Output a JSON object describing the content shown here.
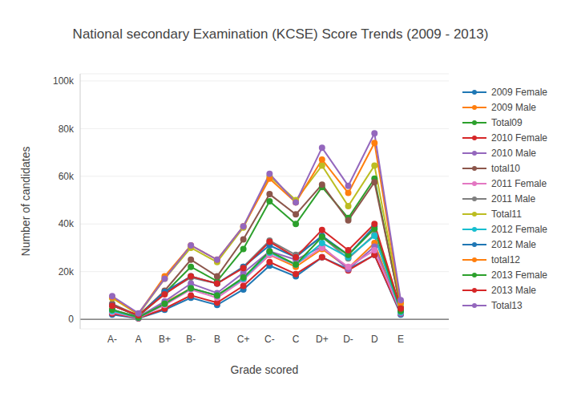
{
  "chart_data": {
    "type": "line",
    "title": "National secondary Examination (KCSE) Score Trends (2009 - 2013)",
    "x_label": "Grade scored",
    "y_label": "Number of candidates",
    "categories": [
      "A-",
      "A",
      "B+",
      "B-",
      "B",
      "C+",
      "C-",
      "C",
      "D+",
      "D-",
      "D",
      "E"
    ],
    "ylim": [
      -4000,
      103000
    ],
    "yticks": [
      {
        "value": 0,
        "label": "0"
      },
      {
        "value": 20000,
        "label": "20k"
      },
      {
        "value": 40000,
        "label": "40k"
      },
      {
        "value": 60000,
        "label": "60k"
      },
      {
        "value": 80000,
        "label": "80k"
      },
      {
        "value": 100000,
        "label": "100k"
      }
    ],
    "grid": true,
    "legend": "right",
    "marker": "circle",
    "series": [
      {
        "name": "2009 Female",
        "color": "#1f77b4",
        "values": [
          2000,
          400,
          4000,
          9000,
          6000,
          12500,
          22500,
          18000,
          26000,
          21000,
          27000,
          2000
        ]
      },
      {
        "name": "2009 Male",
        "color": "#ff7f0e",
        "values": [
          4000,
          800,
          7000,
          13000,
          10000,
          17000,
          27000,
          22000,
          29500,
          21500,
          32000,
          2500
        ]
      },
      {
        "name": "Total09",
        "color": "#2ca02c",
        "values": [
          6000,
          1200,
          11000,
          22000,
          16000,
          29500,
          49500,
          40000,
          55500,
          42500,
          59000,
          4500
        ]
      },
      {
        "name": "2010 Female",
        "color": "#d62728",
        "values": [
          2500,
          500,
          4500,
          10000,
          7000,
          14000,
          24000,
          19000,
          26000,
          20500,
          27000,
          2500
        ]
      },
      {
        "name": "2010 Male",
        "color": "#9467bd",
        "values": [
          4000,
          1000,
          7500,
          15000,
          11000,
          19500,
          28500,
          25000,
          30500,
          21000,
          30500,
          2500
        ]
      },
      {
        "name": "total10",
        "color": "#8c564b",
        "values": [
          6500,
          1500,
          12000,
          25000,
          18000,
          33500,
          52500,
          44000,
          56500,
          41500,
          57500,
          5000
        ]
      },
      {
        "name": "2011 Female",
        "color": "#e377c2",
        "values": [
          3000,
          600,
          6000,
          12500,
          9000,
          16500,
          27000,
          23000,
          30000,
          22000,
          29000,
          3000
        ]
      },
      {
        "name": "2011 Male",
        "color": "#7f7f7f",
        "values": [
          5900,
          1400,
          11000,
          17500,
          15000,
          22000,
          33000,
          27000,
          34500,
          25500,
          35500,
          3500
        ]
      },
      {
        "name": "Total11",
        "color": "#bcbd22",
        "values": [
          8900,
          2000,
          17000,
          30000,
          24000,
          38500,
          60000,
          50000,
          64500,
          47500,
          64500,
          6500
        ]
      },
      {
        "name": "2012 Female",
        "color": "#17becf",
        "values": [
          3500,
          700,
          6500,
          13000,
          10000,
          17000,
          28000,
          23000,
          32000,
          26000,
          35000,
          3000
        ]
      },
      {
        "name": "2012 Male",
        "color": "#1f77b4",
        "values": [
          5800,
          1600,
          11500,
          18000,
          15000,
          22000,
          31000,
          26000,
          35000,
          27000,
          39000,
          4000
        ]
      },
      {
        "name": "total12",
        "color": "#ff7f0e",
        "values": [
          9300,
          2300,
          18000,
          31000,
          25000,
          39000,
          59000,
          49000,
          67000,
          53000,
          74000,
          7000
        ]
      },
      {
        "name": "2013 Female",
        "color": "#2ca02c",
        "values": [
          4000,
          800,
          6500,
          13000,
          10000,
          17500,
          28500,
          23000,
          34500,
          27000,
          38000,
          3500
        ]
      },
      {
        "name": "2013 Male",
        "color": "#d62728",
        "values": [
          5700,
          1700,
          10500,
          18000,
          15000,
          21500,
          32500,
          26000,
          37500,
          29000,
          40000,
          4500
        ]
      },
      {
        "name": "Total13",
        "color": "#9467bd",
        "values": [
          9700,
          2500,
          17000,
          31000,
          25000,
          39000,
          61000,
          49000,
          72000,
          56000,
          78000,
          8000
        ]
      }
    ]
  }
}
